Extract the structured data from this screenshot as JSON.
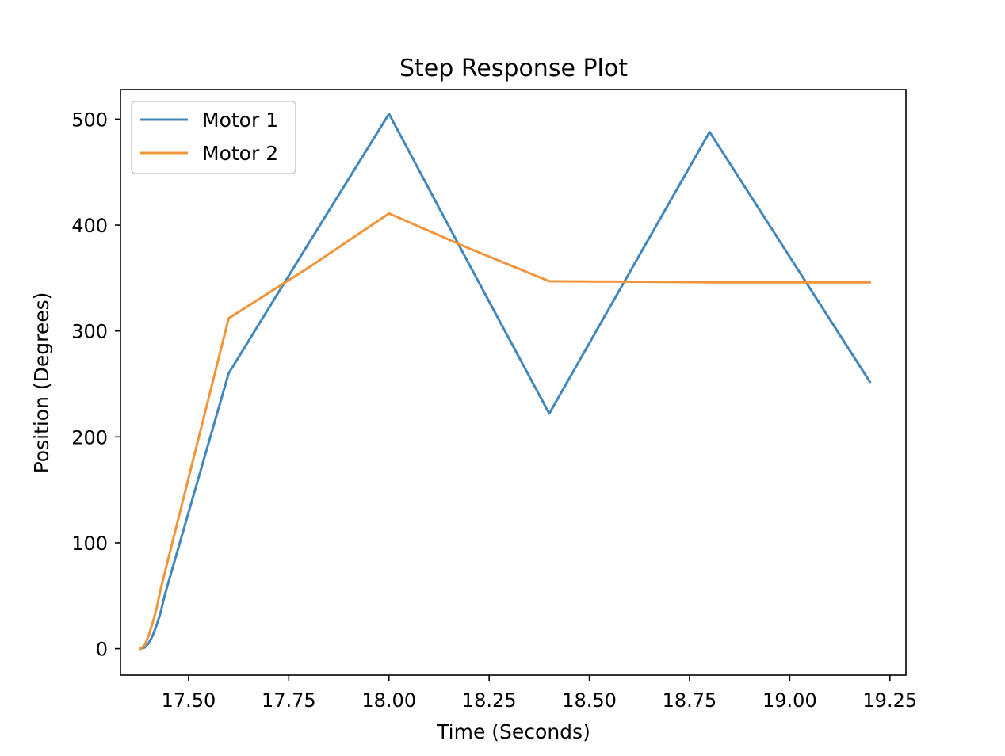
{
  "chart_data": {
    "type": "line",
    "title": "Step Response Plot",
    "xlabel": "Time (Seconds)",
    "ylabel": "Position (Degrees)",
    "xlim": [
      17.33,
      19.29
    ],
    "ylim": [
      -25,
      528
    ],
    "xticks": [
      17.5,
      17.75,
      18.0,
      18.25,
      18.5,
      18.75,
      19.0,
      19.25
    ],
    "xtick_labels": [
      "17.50",
      "17.75",
      "18.00",
      "18.25",
      "18.50",
      "18.75",
      "19.00",
      "19.25"
    ],
    "yticks": [
      0,
      100,
      200,
      300,
      400,
      500
    ],
    "ytick_labels": [
      "0",
      "100",
      "200",
      "300",
      "400",
      "500"
    ],
    "grid": false,
    "legend": "upper-left",
    "series": [
      {
        "name": "Motor 1",
        "color": "#4287bb",
        "x": [
          17.38,
          17.39,
          17.4,
          17.41,
          17.42,
          17.43,
          17.44,
          17.6,
          17.8,
          18.0,
          18.2,
          18.4,
          18.6,
          18.8,
          19.0,
          19.2
        ],
        "y": [
          0,
          1,
          5,
          12,
          22,
          34,
          50,
          260,
          383,
          505,
          363,
          222,
          355,
          488,
          370,
          252
        ]
      },
      {
        "name": "Motor 2",
        "color": "#f0953a",
        "x": [
          17.38,
          17.39,
          17.4,
          17.41,
          17.42,
          17.43,
          17.6,
          17.8,
          18.0,
          18.2,
          18.4,
          18.6,
          18.8,
          19.0,
          19.2
        ],
        "y": [
          0,
          3,
          12,
          24,
          38,
          56,
          312,
          360,
          411,
          378,
          347,
          346.5,
          346,
          346,
          346
        ]
      }
    ]
  }
}
